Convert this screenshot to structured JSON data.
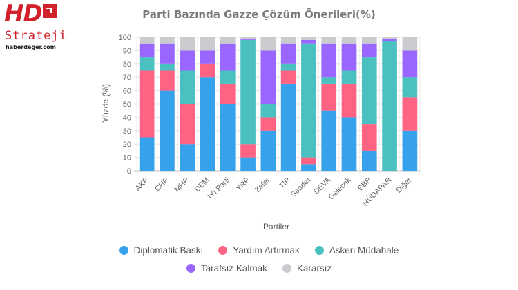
{
  "logo": {
    "brand": "HD",
    "sub": "Strateji",
    "url": "haberdeger.com"
  },
  "chart_data": {
    "type": "bar",
    "stacked": true,
    "title": "Parti Bazında Gazze Çözüm Önerileri(%)",
    "xlabel": "Partiler",
    "ylabel": "Yüzde (%)",
    "ylim": [
      0,
      100
    ],
    "yticks": [
      0,
      10,
      20,
      30,
      40,
      50,
      60,
      70,
      80,
      90,
      100
    ],
    "grid": true,
    "legend_position": "bottom",
    "categories": [
      "AKP",
      "CHP",
      "MHP",
      "DEM",
      "İYİ Parti",
      "YRP",
      "Zafer",
      "TİP",
      "Saadet",
      "DEVA",
      "Gelecek",
      "BBP",
      "HÜDAPAR",
      "Diğer"
    ],
    "series": [
      {
        "name": "Diplomatik Baskı",
        "color": "#36a2eb",
        "values": [
          25,
          60,
          20,
          70,
          50,
          10,
          30,
          65,
          5,
          45,
          40,
          15,
          0,
          30
        ]
      },
      {
        "name": "Yardım Artırmak",
        "color": "#ff6384",
        "values": [
          50,
          15,
          30,
          10,
          15,
          10,
          10,
          10,
          5,
          20,
          25,
          20,
          0,
          25
        ]
      },
      {
        "name": "Askeri Müdahale",
        "color": "#4bc0c0",
        "values": [
          10,
          5,
          25,
          0,
          10,
          78,
          10,
          5,
          85,
          5,
          10,
          50,
          97,
          15
        ]
      },
      {
        "name": "Tarafsız Kalmak",
        "color": "#9966ff",
        "values": [
          10,
          15,
          15,
          10,
          20,
          1,
          40,
          15,
          3,
          25,
          20,
          10,
          2,
          20
        ]
      },
      {
        "name": "Kararsız",
        "color": "#c9cbcf",
        "values": [
          5,
          5,
          10,
          10,
          5,
          1,
          10,
          5,
          2,
          5,
          5,
          5,
          1,
          10
        ]
      }
    ]
  }
}
